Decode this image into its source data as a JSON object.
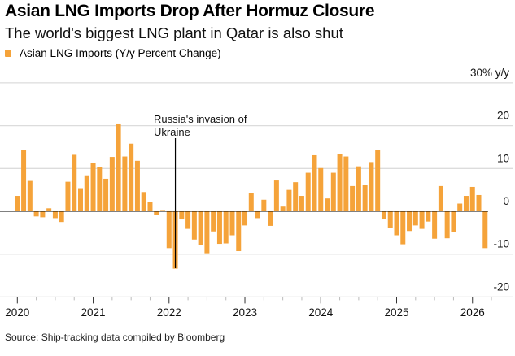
{
  "title": "Asian LNG Imports Drop After Hormuz Closure",
  "subtitle": "The world's biggest LNG plant in Qatar is also shut",
  "source": "Source: Ship-tracking data compiled by Bloomberg",
  "colors": {
    "bar": "#f5a33a",
    "grid": "#dcdcdc",
    "zero": "#000000"
  },
  "chart_data": {
    "type": "bar",
    "legend": [
      "Asian LNG Imports (Y/y Percent Change)"
    ],
    "legend_placement": "top-left",
    "start": "2020-01",
    "frequency": "monthly",
    "x_tick_labels": [
      "2020",
      "2021",
      "2022",
      "2023",
      "2024",
      "2025",
      "2026"
    ],
    "y_tick_labels": [
      "30% y/y",
      "20",
      "10",
      "0",
      "-10",
      "-20"
    ],
    "y_ticks": [
      30,
      20,
      10,
      0,
      -10,
      -20
    ],
    "ylim": [
      -20,
      30
    ],
    "grid": true,
    "annotation": {
      "text_lines": [
        "Russia's invasion of",
        "Ukraine"
      ],
      "month_index": 25
    },
    "values": [
      3.6,
      14.3,
      7.1,
      -1.2,
      -1.4,
      0.7,
      -1.6,
      -2.5,
      6.9,
      13.2,
      5.4,
      8.4,
      11.3,
      10.4,
      7.6,
      12.7,
      20.5,
      12.8,
      15.8,
      11.8,
      4.5,
      2.1,
      -0.9,
      0.3,
      -8.6,
      -13.4,
      -1.9,
      -4.1,
      -6.6,
      -7.9,
      -9.8,
      -4.7,
      -7.6,
      -7.5,
      -5.6,
      -9.3,
      -3.3,
      4.3,
      -1.6,
      2.7,
      -3.4,
      7.2,
      1.1,
      5.0,
      6.8,
      3.6,
      9.0,
      13.1,
      10.1,
      3.0,
      9.0,
      13.4,
      12.8,
      5.9,
      10.5,
      6.2,
      11.5,
      14.4,
      -1.9,
      -3.8,
      -5.6,
      -7.7,
      -4.6,
      -3.3,
      -4.1,
      -2.4,
      -6.4,
      5.9,
      -6.3,
      -4.9,
      1.8,
      3.6,
      5.7,
      3.8,
      -8.6
    ]
  }
}
